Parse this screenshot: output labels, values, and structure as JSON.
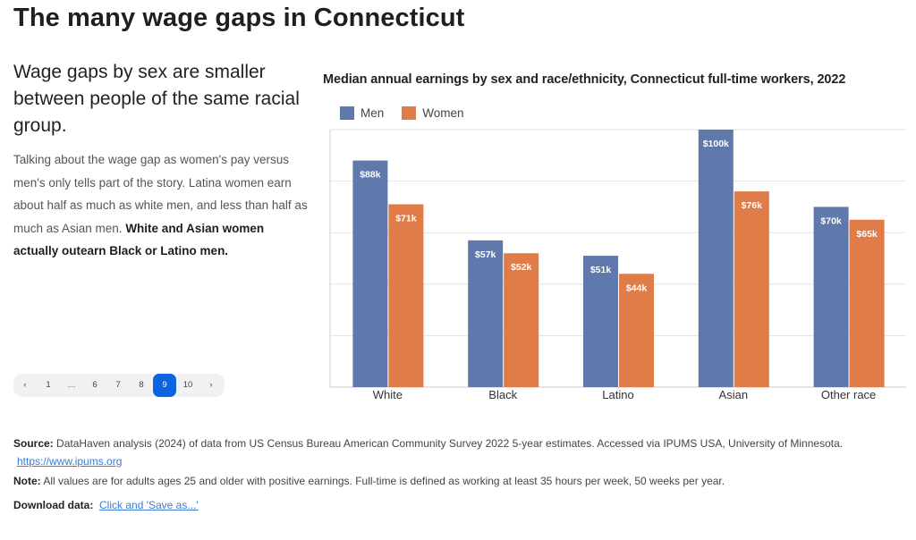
{
  "page": {
    "title": "The many wage gaps in Connecticut",
    "subhead": "Wage gaps by sex are smaller between people of the same racial group.",
    "body_plain": "Talking about the wage gap as women's pay versus men's only tells part of the story. Latina women earn about half as much as white men, and less than half as much as Asian men. ",
    "body_bold": "White and Asian women actually outearn Black or Latino men."
  },
  "pager": {
    "prev": "‹",
    "next": "›",
    "pages": [
      "1",
      "…",
      "6",
      "7",
      "8",
      "9",
      "10"
    ],
    "active": "9"
  },
  "colors": {
    "men": "#6079ac",
    "women": "#e07c48",
    "accent": "#0b63e0",
    "link": "#3a7bd5"
  },
  "chart_data": {
    "type": "bar",
    "title": "Median annual earnings by sex and race/ethnicity, Connecticut full-time workers, 2022",
    "categories": [
      "White",
      "Black",
      "Latino",
      "Asian",
      "Other race"
    ],
    "series": [
      {
        "name": "Men",
        "values": [
          88,
          57,
          51,
          100,
          70
        ],
        "labels": [
          "$88k",
          "$57k",
          "$51k",
          "$100k",
          "$70k"
        ]
      },
      {
        "name": "Women",
        "values": [
          71,
          52,
          44,
          76,
          65
        ],
        "labels": [
          "$71k",
          "$52k",
          "$44k",
          "$76k",
          "$65k"
        ]
      }
    ],
    "units": "thousands of USD",
    "xlabel": "",
    "ylabel": "",
    "ylim": [
      0,
      100
    ],
    "gridlines": [
      0,
      20,
      40,
      60,
      80,
      100
    ],
    "grid": true,
    "legend": "top-left"
  },
  "footer": {
    "source_label": "Source:",
    "source_text": "DataHaven analysis (2024) of data from US Census Bureau American Community Survey 2022 5-year estimates. Accessed via IPUMS USA, University of Minnesota.",
    "source_link": "https://www.ipums.org",
    "note_label": "Note:",
    "note_text": "All values are for adults ages 25 and older with positive earnings. Full-time is defined as working at least 35 hours per week, 50 weeks per year.",
    "download_label": "Download data:",
    "download_link": "Click and 'Save as...'"
  }
}
